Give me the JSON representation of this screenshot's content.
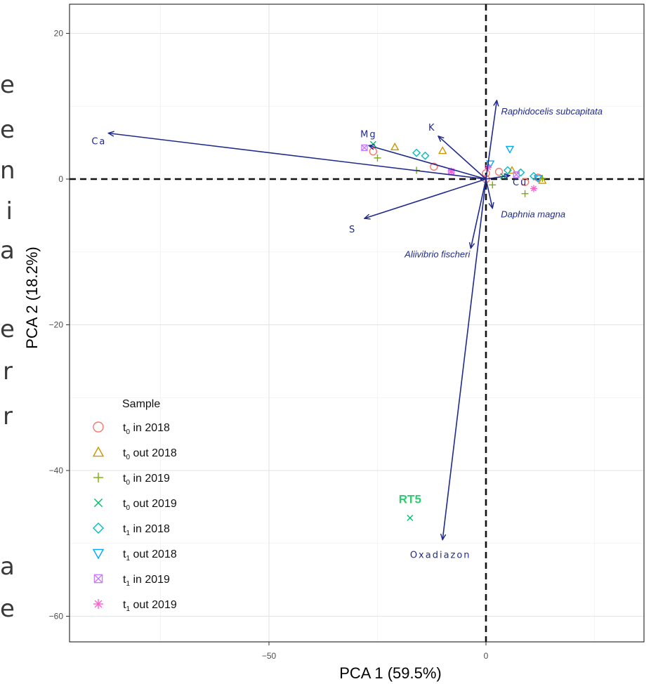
{
  "side_letters": [
    "e",
    "e",
    "n",
    "i",
    "a",
    "e",
    "r",
    "r",
    "a",
    "e"
  ],
  "chart_data": {
    "type": "scatter",
    "title": "",
    "xlabel": "PCA 1 (59.5%)",
    "ylabel": "PCA 2 (18.2%)",
    "xlim": [
      -94,
      35
    ],
    "ylim": [
      -63,
      23
    ],
    "xticks": [
      -50,
      0
    ],
    "yticks": [
      20,
      0,
      -20,
      -40,
      -60
    ],
    "grid": true,
    "zero_lines": "dashed",
    "legend": {
      "title": "Sample",
      "placement": "bottom-left",
      "entries": [
        {
          "key": "t0_in_2018",
          "prefix": "t",
          "sub": "0",
          "text": " in 2018",
          "shape": "circle",
          "color": "#F8766D"
        },
        {
          "key": "t0_out_2018",
          "prefix": "t",
          "sub": "0",
          "text": " out 2018",
          "shape": "triangle",
          "color": "#CD9600"
        },
        {
          "key": "t0_in_2019",
          "prefix": "t",
          "sub": "0",
          "text": " in 2019",
          "shape": "plus",
          "color": "#7CAE00"
        },
        {
          "key": "t0_out_2019",
          "prefix": "t",
          "sub": "0",
          "text": " out 2019",
          "shape": "cross",
          "color": "#00BE67"
        },
        {
          "key": "t1_in_2018",
          "prefix": "t",
          "sub": "1",
          "text": " in 2018",
          "shape": "diamond",
          "color": "#00BFC4"
        },
        {
          "key": "t1_out_2018",
          "prefix": "t",
          "sub": "1",
          "text": " out 2018",
          "shape": "triangle-down",
          "color": "#00A9FF"
        },
        {
          "key": "t1_in_2019",
          "prefix": "t",
          "sub": "1",
          "text": " in 2019",
          "shape": "square-cross",
          "color": "#C77CFF"
        },
        {
          "key": "t1_out_2019",
          "prefix": "t",
          "sub": "1",
          "text": " out 2019",
          "shape": "asterisk",
          "color": "#FF61CC"
        }
      ]
    },
    "loadings": [
      {
        "label": "Ca",
        "x": -87,
        "y": 6.3,
        "style": "variable"
      },
      {
        "label": "Mg",
        "x": -27,
        "y": 4.6,
        "style": "variable"
      },
      {
        "label": "K",
        "x": -11,
        "y": 5.9,
        "style": "variable"
      },
      {
        "label": "S",
        "x": -28,
        "y": -5.4,
        "style": "variable"
      },
      {
        "label": "Cu",
        "x": 5.5,
        "y": 0.5,
        "style": "variable"
      },
      {
        "label": "Raphidocelis subcapitata",
        "x": 2.5,
        "y": 10.8,
        "style": "species"
      },
      {
        "label": "Daphnia magna",
        "x": 1.5,
        "y": -4,
        "style": "species"
      },
      {
        "label": "Aliivibrio fischeri",
        "x": -3.5,
        "y": -9.5,
        "style": "species"
      },
      {
        "label": "Oxadiazon",
        "x": -10,
        "y": -49.5,
        "style": "variable"
      }
    ],
    "annotations": [
      {
        "label": "RT5",
        "x": -17.5,
        "y": -44.5,
        "color": "#2ecc71"
      }
    ],
    "points": [
      {
        "group": "t0_in_2018",
        "x": -26,
        "y": 3.8
      },
      {
        "group": "t0_in_2018",
        "x": -12,
        "y": 1.7
      },
      {
        "group": "t0_in_2018",
        "x": 0,
        "y": 0.8
      },
      {
        "group": "t0_in_2018",
        "x": 3,
        "y": 1.0
      },
      {
        "group": "t0_in_2018",
        "x": 9,
        "y": -0.4
      },
      {
        "group": "t0_in_2018",
        "x": 12,
        "y": 0.2
      },
      {
        "group": "t0_out_2018",
        "x": -10,
        "y": 3.9
      },
      {
        "group": "t0_out_2018",
        "x": -21,
        "y": 4.4
      },
      {
        "group": "t0_out_2018",
        "x": 6,
        "y": 1.2
      },
      {
        "group": "t0_out_2018",
        "x": 13,
        "y": -0.2
      },
      {
        "group": "t0_in_2019",
        "x": -25,
        "y": 2.9
      },
      {
        "group": "t0_in_2019",
        "x": -16,
        "y": 1.2
      },
      {
        "group": "t0_in_2019",
        "x": 1.5,
        "y": -0.8
      },
      {
        "group": "t0_in_2019",
        "x": 9,
        "y": -2.0
      },
      {
        "group": "t0_in_2019",
        "x": 13,
        "y": 0.1
      },
      {
        "group": "t0_out_2019",
        "x": -26,
        "y": 4.8
      },
      {
        "group": "t0_out_2019",
        "x": -17.5,
        "y": -46.5
      },
      {
        "group": "t0_out_2019",
        "x": 4,
        "y": 0.4
      },
      {
        "group": "t0_in_2018_b",
        "x": 0,
        "y": 0
      },
      {
        "group": "t1_in_2018",
        "x": -16,
        "y": 3.6
      },
      {
        "group": "t1_in_2018",
        "x": -14,
        "y": 3.2
      },
      {
        "group": "t1_in_2018",
        "x": 5,
        "y": 1.2
      },
      {
        "group": "t1_in_2018",
        "x": 8,
        "y": 0.9
      },
      {
        "group": "t1_in_2018",
        "x": 11,
        "y": 0.4
      },
      {
        "group": "t1_out_2018",
        "x": 5.5,
        "y": 4.1
      },
      {
        "group": "t1_out_2018",
        "x": 1,
        "y": 2.1
      },
      {
        "group": "t1_out_2018",
        "x": 12,
        "y": 0.1
      },
      {
        "group": "t1_in_2019",
        "x": -28,
        "y": 4.3
      },
      {
        "group": "t1_in_2019",
        "x": -8,
        "y": 1.0
      },
      {
        "group": "t1_in_2019",
        "x": 7,
        "y": 0.6
      },
      {
        "group": "t1_out_2019",
        "x": -8,
        "y": 1.1
      },
      {
        "group": "t1_out_2019",
        "x": 0.5,
        "y": 1.6
      },
      {
        "group": "t1_out_2019",
        "x": 11,
        "y": -1.3
      }
    ]
  }
}
